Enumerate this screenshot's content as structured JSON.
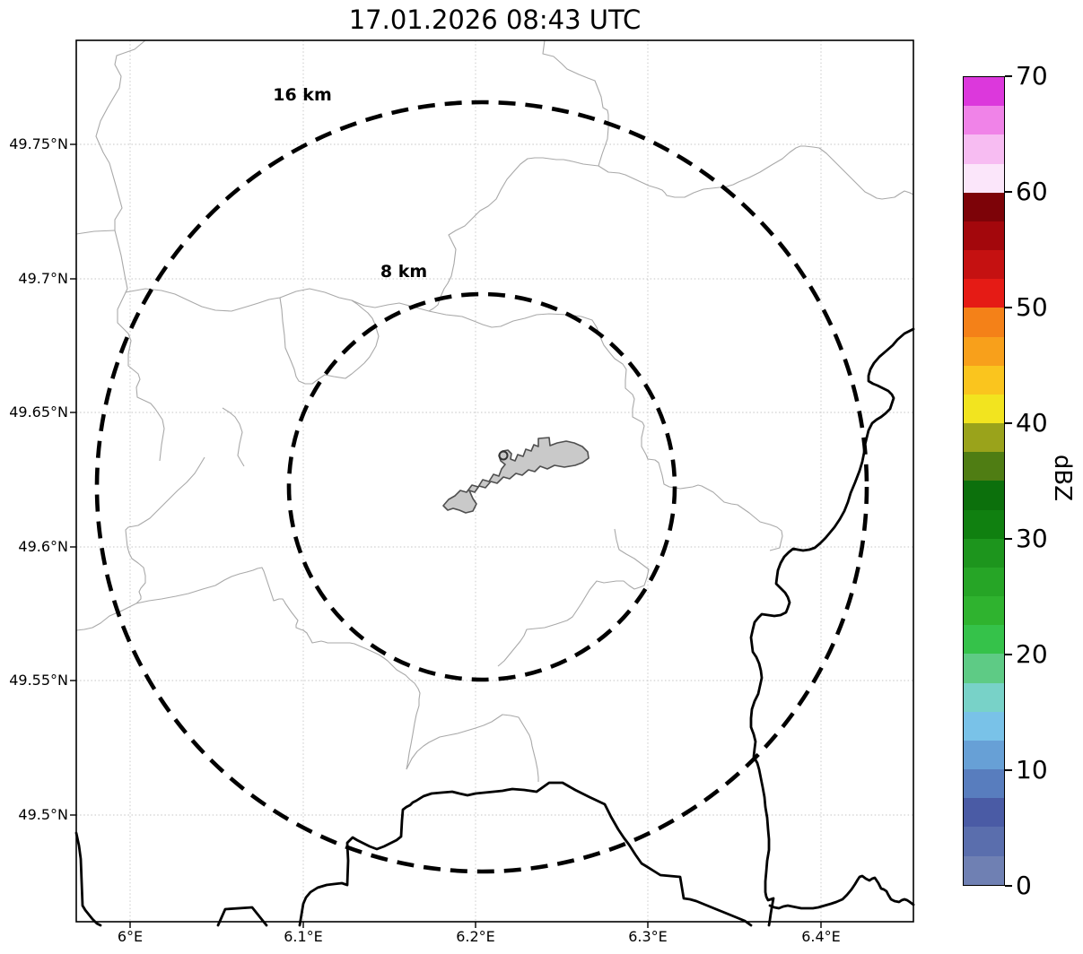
{
  "title": "17.01.2026 08:43 UTC",
  "map": {
    "range_rings": [
      {
        "label": "16 km"
      },
      {
        "label": "8 km"
      }
    ],
    "x_axis_ticks": [
      "6°E",
      "6.1°E",
      "6.2°E",
      "6.3°E",
      "6.4°E"
    ],
    "y_axis_ticks": [
      "49.75°N",
      "49.7°N",
      "49.65°N",
      "49.6°N",
      "49.55°N",
      "49.5°N"
    ],
    "feature_colors": {
      "airport_area_fill": "#c9c9c9",
      "airport_area_outline": "#4f4f4f",
      "country_border": "#000000",
      "municipal_boundary": "#aaaaaa",
      "grid_line": "#c8c8c8",
      "range_ring": "#000000"
    }
  },
  "colorbar": {
    "label": "dBZ",
    "ticks": [
      "0",
      "10",
      "20",
      "30",
      "40",
      "50",
      "60",
      "70"
    ],
    "min": 0,
    "max": 70,
    "segment_colors_bottom_to_top": [
      "#6F80B3",
      "#5A6EAD",
      "#4A5BA5",
      "#587DBE",
      "#67A0D6",
      "#79C2E8",
      "#78D2C8",
      "#5ECB85",
      "#35C24A",
      "#2FB32F",
      "#26A526",
      "#1D951D",
      "#108010",
      "#0C700C",
      "#4F7D13",
      "#9AA31B",
      "#F2E41F",
      "#FAC51E",
      "#F8A01B",
      "#F48118",
      "#E51B15",
      "#C51111",
      "#A3070C",
      "#7D0308",
      "#FBE6FA",
      "#F7BCF2",
      "#F083E8",
      "#DC38DC"
    ]
  },
  "chart_data": {
    "type": "map",
    "title": "17.01.2026 08:43 UTC",
    "x_tick_values": [
      6.0,
      6.1,
      6.2,
      6.3,
      6.4
    ],
    "x_tick_labels": [
      "6°E",
      "6.1°E",
      "6.2°E",
      "6.3°E",
      "6.4°E"
    ],
    "y_tick_values": [
      49.5,
      49.55,
      49.6,
      49.65,
      49.7,
      49.75
    ],
    "y_tick_labels": [
      "49.5°N",
      "49.55°N",
      "49.6°N",
      "49.65°N",
      "49.7°N",
      "49.75°N"
    ],
    "x_range_deg_e": [
      5.97,
      6.45
    ],
    "y_range_deg_n": [
      49.46,
      49.79
    ],
    "grid": "on (dotted)",
    "range_rings_km": [
      8,
      16
    ],
    "ring_center_deg": {
      "lon_e": 6.2,
      "lat_n": 49.62
    },
    "colorbar_label": "dBZ",
    "colorbar_range": [
      0,
      70
    ],
    "colorbar_tick_step": 10,
    "colorbar_segment_size_dbz": 2.5,
    "radar_echoes": "none visible (empty reflectivity field)"
  }
}
